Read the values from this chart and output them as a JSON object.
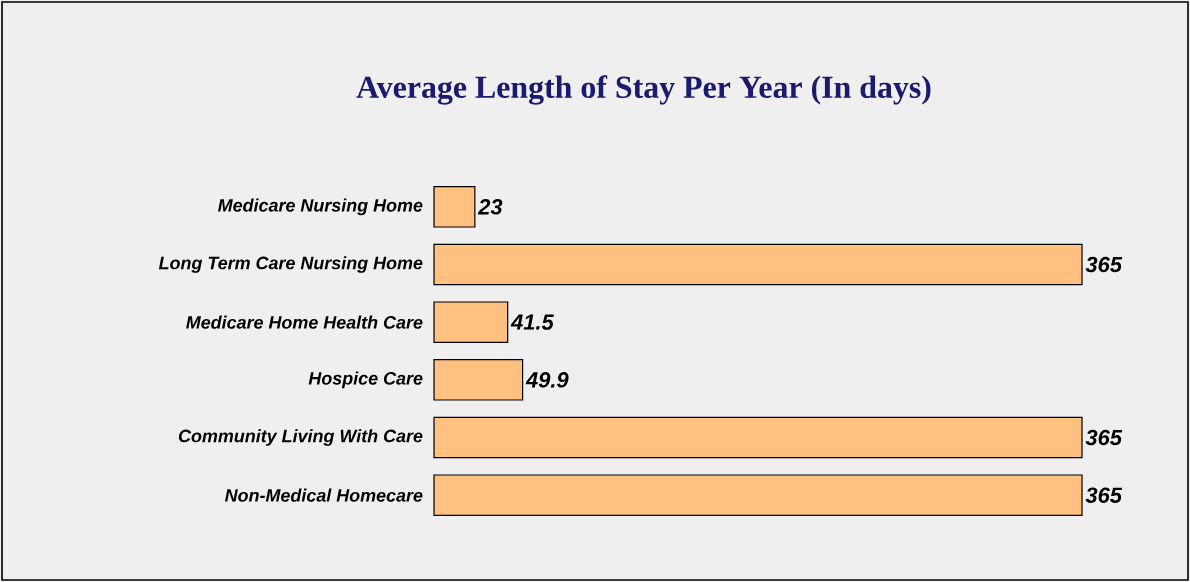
{
  "chart_data": {
    "type": "bar",
    "orientation": "horizontal",
    "title": "Average Length of Stay Per Year (In days)",
    "categories": [
      "Medicare Nursing Home",
      "Long Term Care Nursing Home",
      "Medicare Home Health Care",
      "Hospice Care",
      "Community Living With Care",
      "Non-Medical Homecare"
    ],
    "values": [
      23,
      365,
      41.5,
      49.9,
      365,
      365
    ],
    "color": "#ffc080",
    "data_labels": true
  }
}
